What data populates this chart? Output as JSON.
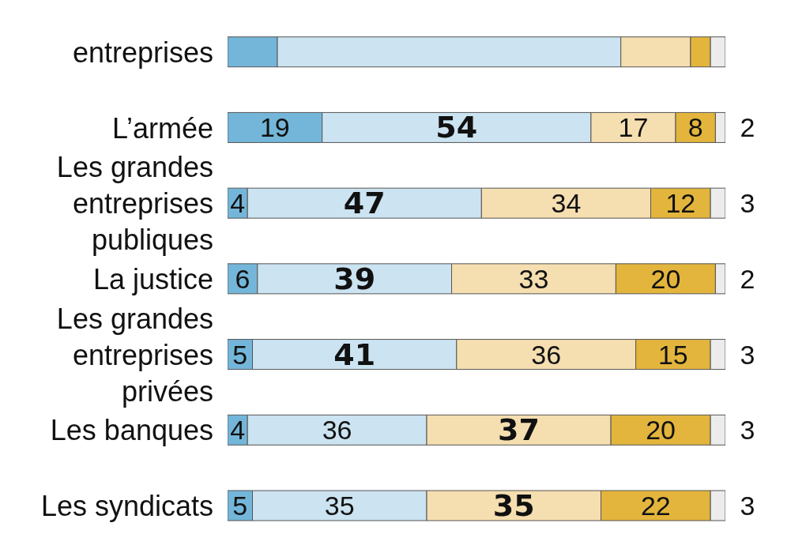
{
  "chart_data": {
    "type": "bar",
    "orientation": "horizontal",
    "stacked": true,
    "legend": false,
    "grid": false,
    "tick_labels": false,
    "xlim": [
      0,
      100
    ],
    "categories": [
      "entreprises",
      "L’armée",
      "Les grandes entreprises publiques",
      "La justice",
      "Les grandes entreprises privées",
      "Les banques",
      "Les syndicats"
    ],
    "series": [
      {
        "color": "#74b6d9",
        "values": [
          10,
          19,
          4,
          6,
          5,
          4,
          5
        ],
        "value_labels": [
          null,
          "19",
          "4",
          "6",
          "5",
          "4",
          "5"
        ]
      },
      {
        "color": "#cce3f1",
        "values": [
          69,
          54,
          47,
          39,
          41,
          36,
          35
        ],
        "value_labels": [
          null,
          "54",
          "47",
          "39",
          "41",
          "36",
          "35"
        ]
      },
      {
        "color": "#f5deb0",
        "values": [
          14,
          17,
          34,
          33,
          36,
          37,
          35
        ],
        "value_labels": [
          null,
          "17",
          "34",
          "33",
          "36",
          "37",
          "35"
        ]
      },
      {
        "color": "#e3b53c",
        "values": [
          4,
          8,
          12,
          20,
          15,
          20,
          22
        ],
        "value_labels": [
          null,
          "8",
          "12",
          "20",
          "15",
          "20",
          "22"
        ]
      },
      {
        "color": "#ececec",
        "values": [
          3,
          2,
          3,
          2,
          3,
          3,
          3
        ],
        "value_labels": [
          null,
          "2",
          "3",
          "2",
          "3",
          "3",
          "3"
        ]
      }
    ]
  }
}
